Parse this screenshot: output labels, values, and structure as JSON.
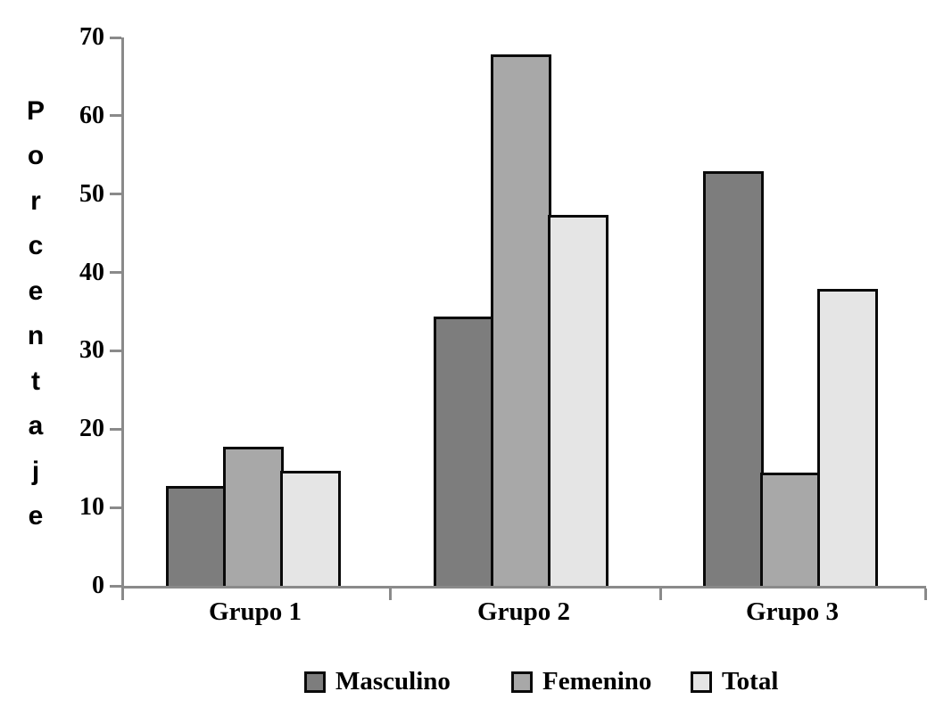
{
  "chart_data": {
    "type": "bar",
    "title": "",
    "xlabel": "",
    "ylabel": "Porcentaje",
    "categories": [
      "Grupo 1",
      "Grupo 2",
      "Grupo 3"
    ],
    "series": [
      {
        "name": "Masculino",
        "color": "#7d7d7d",
        "values": [
          12.8,
          34.4,
          52.9
        ]
      },
      {
        "name": "Femenino",
        "color": "#a8a8a8",
        "values": [
          17.8,
          67.8,
          14.4
        ]
      },
      {
        "name": "Total",
        "color": "#e5e5e5",
        "values": [
          14.7,
          47.3,
          37.9
        ]
      }
    ],
    "ylim": [
      0,
      70
    ],
    "y_ticks": [
      0,
      10,
      20,
      30,
      40,
      50,
      60,
      70
    ],
    "grid": false,
    "legend_position": "bottom",
    "axis_color": "#8a8a8a",
    "bar_border_color": "#0a0a0a",
    "text_color": "#000000"
  }
}
